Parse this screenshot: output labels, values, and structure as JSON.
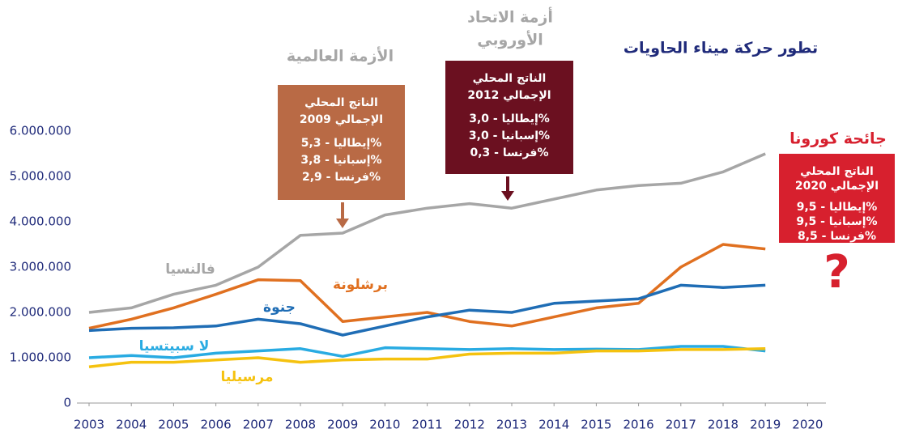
{
  "chart_data": {
    "type": "line",
    "title": "تطور حركة ميناء الحاويات",
    "categories": [
      "2003",
      "2004",
      "2005",
      "2006",
      "2007",
      "2008",
      "2009",
      "2010",
      "2011",
      "2012",
      "2013",
      "2014",
      "2015",
      "2016",
      "2017",
      "2018",
      "2019",
      "2020"
    ],
    "ylim": [
      0,
      6000000
    ],
    "yticks": [
      0,
      {
        "value": 1000000,
        "label": "1.000.000"
      },
      {
        "value": 2000000,
        "label": "2.000.000"
      },
      {
        "value": 3000000,
        "label": "3.000.000"
      },
      {
        "value": 4000000,
        "label": "4.000.000"
      },
      {
        "value": 5000000,
        "label": "5.000.000"
      },
      {
        "value": 6000000,
        "label": "6.000.000"
      }
    ],
    "grid": false,
    "series": [
      {
        "name": "فالنسيا",
        "color": "#a6a6a6",
        "values": [
          2000000,
          2100000,
          2400000,
          2600000,
          3000000,
          3700000,
          3750000,
          4150000,
          4300000,
          4400000,
          4300000,
          4500000,
          4700000,
          4800000,
          4850000,
          5100000,
          5500000,
          null
        ]
      },
      {
        "name": "برشلونة",
        "color": "#e07020",
        "values": [
          1650000,
          1850000,
          2100000,
          2400000,
          2720000,
          2700000,
          1800000,
          1900000,
          2000000,
          1800000,
          1700000,
          1900000,
          2100000,
          2200000,
          3000000,
          3500000,
          3400000,
          null
        ]
      },
      {
        "name": "جنوة",
        "color": "#1f6db5",
        "values": [
          1600000,
          1650000,
          1660000,
          1700000,
          1850000,
          1750000,
          1500000,
          1700000,
          1900000,
          2050000,
          2000000,
          2200000,
          2250000,
          2300000,
          2600000,
          2550000,
          2600000,
          null
        ]
      },
      {
        "name": "لا سبيتسيا",
        "color": "#29abe2",
        "values": [
          1000000,
          1050000,
          1000000,
          1100000,
          1150000,
          1200000,
          1030000,
          1220000,
          1200000,
          1180000,
          1200000,
          1180000,
          1190000,
          1180000,
          1250000,
          1250000,
          1150000,
          null
        ]
      },
      {
        "name": "مرسيليا",
        "color": "#f5c20f",
        "values": [
          800000,
          900000,
          900000,
          950000,
          1000000,
          900000,
          950000,
          970000,
          970000,
          1080000,
          1100000,
          1100000,
          1150000,
          1150000,
          1180000,
          1180000,
          1200000,
          null
        ]
      }
    ],
    "annotations": [
      {
        "heading": [
          "الأزمة العالمية"
        ],
        "color": "#b96a45",
        "lines": [
          "الناتج المحلي",
          "الإجمالي 2009",
          "إيطاليا - 5,3%",
          "إسبانيا - 3,8%",
          "فرنسا - 2,9%"
        ]
      },
      {
        "heading": [
          "أزمة الاتحاد",
          "الأوروبي"
        ],
        "color": "#6b1020",
        "lines": [
          "الناتج المحلي",
          "الإجمالي 2012",
          "إيطاليا - 3,0%",
          "إسبانيا - 3,0%",
          "فرنسا - 0,3%"
        ]
      },
      {
        "heading": [
          "جائحة كورونا"
        ],
        "color": "#d7202e",
        "lines": [
          "الناتج المحلي",
          "الإجمالي 2020",
          "إيطاليا - 9,5%",
          "إسبانيا - 9,5%",
          "فرنسا - 8,5%"
        ],
        "mark": "?"
      }
    ]
  }
}
